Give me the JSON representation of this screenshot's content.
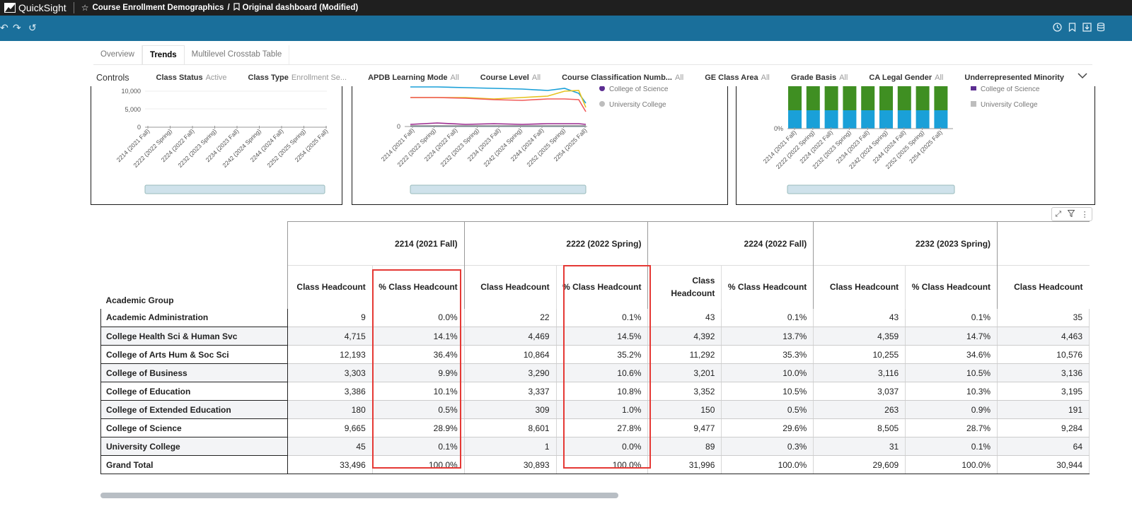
{
  "app": {
    "name": "QuickSight"
  },
  "breadcrumb": {
    "analysis": "Course Enrollment Demographics",
    "separator": "/",
    "dashboard": "Original dashboard (Modified)"
  },
  "tabs": [
    "Overview",
    "Trends",
    "Multilevel Crosstab Table"
  ],
  "active_tab": "Trends",
  "controls": {
    "title": "Controls",
    "items": [
      {
        "label": "Class Status",
        "value": "Active"
      },
      {
        "label": "Class Type",
        "value": "Enrollment Se..."
      },
      {
        "label": "APDB Learning Mode",
        "value": "All"
      },
      {
        "label": "Course Level",
        "value": "All"
      },
      {
        "label": "Course Classification Numb...",
        "value": "All"
      },
      {
        "label": "GE Class Area",
        "value": "All"
      },
      {
        "label": "Grade Basis",
        "value": "All"
      },
      {
        "label": "CA Legal Gender",
        "value": "All"
      },
      {
        "label": "Underrepresented Minority",
        "value": ""
      }
    ]
  },
  "charts_visible": {
    "terms": [
      "2214 (2021 Fall)",
      "2222 (2022 Spring)",
      "2224 (2022 Fall)",
      "2232 (2023 Spring)",
      "2234 (2023 Fall)",
      "2242 (2024 Spring)",
      "2244 (2024 Fall)",
      "2252 (2025 Spring)",
      "2254 (2025 Fall)"
    ],
    "left_y_ticks": [
      "10,000",
      "5,000",
      "0"
    ],
    "middle_y_ticks": [
      "0"
    ],
    "right_y_ticks": [
      "0%"
    ],
    "legend_items": [
      "College of Science",
      "University College"
    ]
  },
  "table": {
    "row_header": "Academic Group",
    "terms": [
      "2214 (2021 Fall)",
      "2222 (2022 Spring)",
      "2224 (2022 Fall)",
      "2232 (2023 Spring)",
      ""
    ],
    "measures": [
      "Class Headcount",
      "% Class Headcount"
    ],
    "rows": [
      {
        "group": "Academic Administration",
        "values": [
          "9",
          "0.0%",
          "22",
          "0.1%",
          "43",
          "0.1%",
          "43",
          "0.1%",
          "35"
        ]
      },
      {
        "group": "College Health Sci & Human Svc",
        "values": [
          "4,715",
          "14.1%",
          "4,469",
          "14.5%",
          "4,392",
          "13.7%",
          "4,359",
          "14.7%",
          "4,463"
        ]
      },
      {
        "group": "College of Arts Hum & Soc Sci",
        "values": [
          "12,193",
          "36.4%",
          "10,864",
          "35.2%",
          "11,292",
          "35.3%",
          "10,255",
          "34.6%",
          "10,576"
        ]
      },
      {
        "group": "College of Business",
        "values": [
          "3,303",
          "9.9%",
          "3,290",
          "10.6%",
          "3,201",
          "10.0%",
          "3,116",
          "10.5%",
          "3,136"
        ]
      },
      {
        "group": "College of Education",
        "values": [
          "3,386",
          "10.1%",
          "3,337",
          "10.8%",
          "3,352",
          "10.5%",
          "3,037",
          "10.3%",
          "3,195"
        ]
      },
      {
        "group": "College of Extended Education",
        "values": [
          "180",
          "0.5%",
          "309",
          "1.0%",
          "150",
          "0.5%",
          "263",
          "0.9%",
          "191"
        ]
      },
      {
        "group": "College of Science",
        "values": [
          "9,665",
          "28.9%",
          "8,601",
          "27.8%",
          "9,477",
          "29.6%",
          "8,505",
          "28.7%",
          "9,284"
        ]
      },
      {
        "group": "University College",
        "values": [
          "45",
          "0.1%",
          "1",
          "0.0%",
          "89",
          "0.3%",
          "31",
          "0.1%",
          "64"
        ]
      },
      {
        "group": "Grand Total",
        "values": [
          "33,496",
          "100.0%",
          "30,893",
          "100.0%",
          "31,996",
          "100.0%",
          "29,609",
          "100.0%",
          "30,944"
        ]
      }
    ]
  },
  "colors": {
    "topbar": "#1f1f1f",
    "toolbar": "#1a6f9b",
    "highlight": "#e53935",
    "bar_green": "#3f8f22",
    "bar_blue": "#1aa0d8"
  }
}
